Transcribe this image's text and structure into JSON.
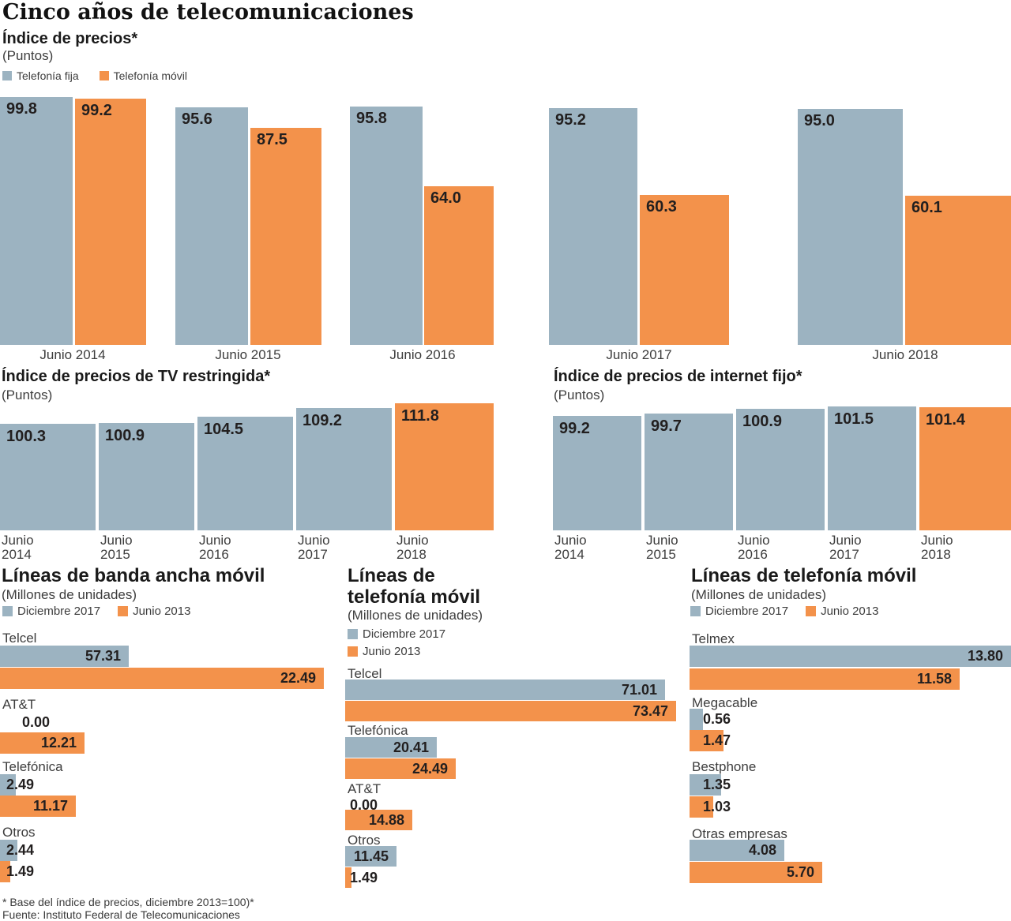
{
  "palette": {
    "slate_blue": "#9cb3c1",
    "orange": "#f3924b",
    "label_dark": "#221f1f"
  },
  "header": {
    "title": "Cinco años de telecomunicaciones"
  },
  "chart_data": [
    {
      "id": "indice_precios",
      "type": "bar",
      "title": "Índice de precios*",
      "unit": "(Puntos)",
      "legend_position": "top",
      "ylim": [
        0,
        100
      ],
      "categories": [
        "Junio 2014",
        "Junio 2015",
        "Junio 2016",
        "Junio 2017",
        "Junio 2018"
      ],
      "series": [
        {
          "name": "Telefonía fija",
          "color": "#9cb3c1",
          "values": [
            99.8,
            95.6,
            95.8,
            95.2,
            95.0
          ],
          "labels": [
            "99.8",
            "95.6",
            "95.8",
            "95.2",
            "95.0"
          ]
        },
        {
          "name": "Telefonía móvil",
          "color": "#f3924b",
          "values": [
            99.2,
            87.5,
            64.0,
            60.3,
            60.1
          ],
          "labels": [
            "99.2",
            "87.5",
            "64.0",
            "60.3",
            "60.1"
          ]
        }
      ]
    },
    {
      "id": "tv_restringida",
      "type": "bar",
      "title": "Índice de precios de TV restringida*",
      "unit": "(Puntos)",
      "categories": [
        "Junio 2014",
        "Junio 2015",
        "Junio 2016",
        "Junio 2017",
        "Junio 2018"
      ],
      "values": [
        100.3,
        100.9,
        104.5,
        109.2,
        111.8
      ],
      "labels": [
        "100.3",
        "100.9",
        "104.5",
        "109.2",
        "111.8"
      ],
      "bar_colors": [
        "#9cb3c1",
        "#9cb3c1",
        "#9cb3c1",
        "#9cb3c1",
        "#f3924b"
      ]
    },
    {
      "id": "internet_fijo",
      "type": "bar",
      "title": "Índice de precios de internet fijo*",
      "unit": "(Puntos)",
      "categories": [
        "Junio 2014",
        "Junio 2015",
        "Junio 2016",
        "Junio 2017",
        "Junio 2018"
      ],
      "values": [
        99.2,
        99.7,
        100.9,
        101.5,
        101.4
      ],
      "labels": [
        "99.2",
        "99.7",
        "100.9",
        "101.5",
        "101.4"
      ],
      "bar_colors": [
        "#9cb3c1",
        "#9cb3c1",
        "#9cb3c1",
        "#9cb3c1",
        "#f3924b"
      ]
    },
    {
      "id": "banda_ancha_movil",
      "type": "bar-horizontal",
      "title": "Líneas de banda ancha móvil",
      "unit": "(Millones de unidades)",
      "categories": [
        "Telcel",
        "AT&T",
        "Telefónica",
        "Otros"
      ],
      "series": [
        {
          "name": "Diciembre 2017",
          "color": "#9cb3c1",
          "values": [
            57.31,
            0.0,
            2.49,
            2.44
          ],
          "labels": [
            "57.31",
            "0.00",
            "2.49",
            "2.44"
          ]
        },
        {
          "name": "Junio 2013",
          "color": "#f3924b",
          "values": [
            22.49,
            12.21,
            11.17,
            1.49
          ],
          "labels": [
            "22.49",
            "12.21",
            "11.17",
            "1.49"
          ]
        }
      ]
    },
    {
      "id": "lineas_telefonia_movil_centro",
      "type": "bar-horizontal",
      "title": "Líneas de telefonía móvil",
      "unit": "(Millones de unidades)",
      "categories": [
        "Telcel",
        "Telefónica",
        "AT&T",
        "Otros"
      ],
      "series": [
        {
          "name": "Diciembre 2017",
          "color": "#9cb3c1",
          "values": [
            71.01,
            20.41,
            0.0,
            11.45
          ],
          "labels": [
            "71.01",
            "20.41",
            "0.00",
            "11.45"
          ]
        },
        {
          "name": "Junio 2013",
          "color": "#f3924b",
          "values": [
            73.47,
            24.49,
            14.88,
            1.49
          ],
          "labels": [
            "73.47",
            "24.49",
            "14.88",
            "1.49"
          ]
        }
      ]
    },
    {
      "id": "lineas_telefonia_movil_derecha",
      "type": "bar-horizontal",
      "title": "Líneas de telefonía móvil",
      "unit": "(Millones de unidades)",
      "categories": [
        "Telmex",
        "Megacable",
        "Bestphone",
        "Otras empresas"
      ],
      "series": [
        {
          "name": "Diciembre 2017",
          "color": "#9cb3c1",
          "values": [
            13.8,
            0.56,
            1.35,
            4.08
          ],
          "labels": [
            "13.80",
            "0.56",
            "1.35",
            "4.08"
          ]
        },
        {
          "name": "Junio 2013",
          "color": "#f3924b",
          "values": [
            11.58,
            1.47,
            1.03,
            5.7
          ],
          "labels": [
            "11.58",
            "1.47",
            "1.03",
            "5.70"
          ]
        }
      ]
    }
  ],
  "footer": {
    "note": "* Base del índice de precios, diciembre 2013=100)*",
    "source": "Fuente: Instituto Federal de Telecomunicaciones"
  }
}
